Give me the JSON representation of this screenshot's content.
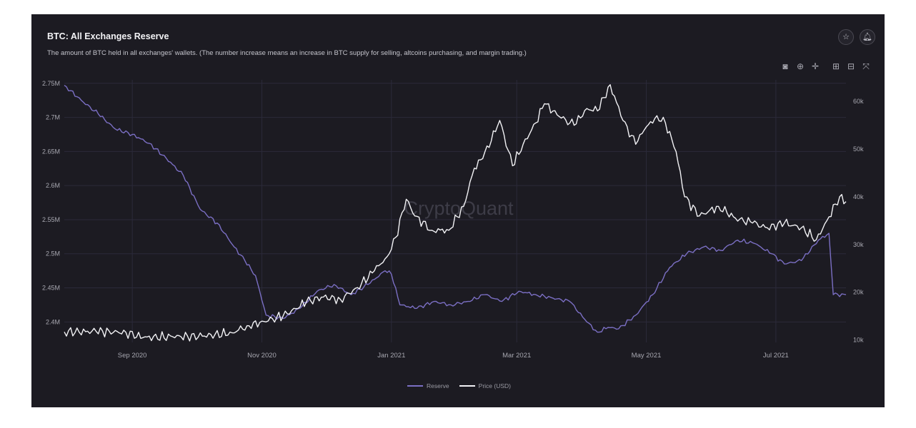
{
  "header": {
    "title": "BTC: All Exchanges Reserve",
    "subtitle": "The amount of BTC held in all exchanges' wallets. (The number increase means an increase in BTC supply for selling, altcoins purchasing, and margin trading.)"
  },
  "icons": {
    "star": "star-icon",
    "bell": "bell-icon",
    "toolbar": [
      "camera-icon",
      "zoom-icon",
      "pan-icon",
      "zoom-in-icon",
      "zoom-out-icon",
      "reset-axes-icon"
    ]
  },
  "watermark": "CryptoQuant",
  "colors": {
    "reserve": "#7b6fc4",
    "price": "#f2f2f5",
    "background": "#1c1b22",
    "grid": "#2b2a3a"
  },
  "chart_data": {
    "type": "line",
    "title": "BTC: All Exchanges Reserve",
    "x_ticks": [
      "Sep 2020",
      "Nov 2020",
      "Jan 2021",
      "Mar 2021",
      "May 2021",
      "Jul 2021"
    ],
    "x_tick_dates": [
      "2020-09-01",
      "2020-11-01",
      "2021-01-01",
      "2021-03-01",
      "2021-05-01",
      "2021-07-01"
    ],
    "x_range": [
      "2020-07-31",
      "2021-08-03"
    ],
    "y_left": {
      "ticks": [
        "2.75M",
        "2.7M",
        "2.65M",
        "2.6M",
        "2.55M",
        "2.5M",
        "2.45M",
        "2.4M"
      ],
      "values": [
        2750000,
        2700000,
        2650000,
        2600000,
        2550000,
        2500000,
        2450000,
        2400000
      ],
      "range": [
        2370000,
        2755000
      ]
    },
    "y_right": {
      "ticks": [
        "60k",
        "50k",
        "40k",
        "30k",
        "20k",
        "10k"
      ],
      "values": [
        60000,
        50000,
        40000,
        30000,
        20000,
        10000
      ],
      "range": [
        9500,
        64500
      ]
    },
    "legend": {
      "placement": "bottom-center",
      "entries": [
        "Reserve",
        "Price (USD)"
      ]
    },
    "grid": true,
    "series": [
      {
        "name": "Reserve",
        "axis": "left",
        "x": [
          "2020-07-31",
          "2020-08-08",
          "2020-08-16",
          "2020-08-24",
          "2020-09-01",
          "2020-09-09",
          "2020-09-17",
          "2020-09-25",
          "2020-10-03",
          "2020-10-11",
          "2020-10-19",
          "2020-10-24",
          "2020-10-29",
          "2020-11-03",
          "2020-11-11",
          "2020-11-19",
          "2020-11-27",
          "2020-12-05",
          "2020-12-13",
          "2020-12-21",
          "2020-12-29",
          "2021-01-01",
          "2021-01-05",
          "2021-01-13",
          "2021-01-21",
          "2021-01-29",
          "2021-02-06",
          "2021-02-14",
          "2021-02-22",
          "2021-03-02",
          "2021-03-10",
          "2021-03-18",
          "2021-03-26",
          "2021-04-03",
          "2021-04-08",
          "2021-04-13",
          "2021-04-18",
          "2021-04-26",
          "2021-05-04",
          "2021-05-12",
          "2021-05-20",
          "2021-05-28",
          "2021-06-05",
          "2021-06-13",
          "2021-06-21",
          "2021-06-29",
          "2021-07-05",
          "2021-07-13",
          "2021-07-21",
          "2021-07-26",
          "2021-07-28",
          "2021-08-03"
        ],
        "values": [
          2747000,
          2725000,
          2705000,
          2683000,
          2675000,
          2662000,
          2640000,
          2615000,
          2565000,
          2545000,
          2510000,
          2490000,
          2468000,
          2410000,
          2405000,
          2420000,
          2445000,
          2455000,
          2440000,
          2455000,
          2475000,
          2470000,
          2425000,
          2420000,
          2430000,
          2425000,
          2430000,
          2440000,
          2430000,
          2445000,
          2440000,
          2435000,
          2430000,
          2400000,
          2385000,
          2392000,
          2390000,
          2410000,
          2440000,
          2480000,
          2500000,
          2510000,
          2505000,
          2520000,
          2515000,
          2500000,
          2485000,
          2490000,
          2520000,
          2530000,
          2440000,
          2440000
        ]
      },
      {
        "name": "Price (USD)",
        "axis": "right",
        "x": [
          "2020-07-31",
          "2020-08-15",
          "2020-08-29",
          "2020-09-06",
          "2020-09-20",
          "2020-10-04",
          "2020-10-18",
          "2020-10-25",
          "2020-11-04",
          "2020-11-13",
          "2020-11-22",
          "2020-11-30",
          "2020-12-08",
          "2020-12-16",
          "2020-12-24",
          "2020-12-30",
          "2021-01-03",
          "2021-01-08",
          "2021-01-12",
          "2021-01-20",
          "2021-01-28",
          "2021-02-04",
          "2021-02-09",
          "2021-02-13",
          "2021-02-21",
          "2021-02-27",
          "2021-03-04",
          "2021-03-10",
          "2021-03-14",
          "2021-03-22",
          "2021-03-28",
          "2021-04-03",
          "2021-04-08",
          "2021-04-14",
          "2021-04-20",
          "2021-04-26",
          "2021-04-30",
          "2021-05-06",
          "2021-05-10",
          "2021-05-15",
          "2021-05-19",
          "2021-05-26",
          "2021-06-04",
          "2021-06-12",
          "2021-06-20",
          "2021-06-27",
          "2021-07-05",
          "2021-07-13",
          "2021-07-20",
          "2021-07-25",
          "2021-07-31",
          "2021-08-03"
        ],
        "values": [
          11700,
          11800,
          11600,
          10500,
          10700,
          10800,
          11500,
          13000,
          14000,
          15500,
          18000,
          19000,
          18500,
          21000,
          24500,
          27500,
          31500,
          39500,
          36000,
          33000,
          33000,
          38000,
          46000,
          48000,
          56000,
          46500,
          51000,
          55500,
          59500,
          56500,
          55000,
          58500,
          58000,
          63500,
          56000,
          51000,
          54000,
          57000,
          55500,
          49500,
          40000,
          36000,
          38000,
          35500,
          34500,
          33500,
          34500,
          33500,
          31000,
          35000,
          40000,
          39000
        ]
      }
    ]
  }
}
